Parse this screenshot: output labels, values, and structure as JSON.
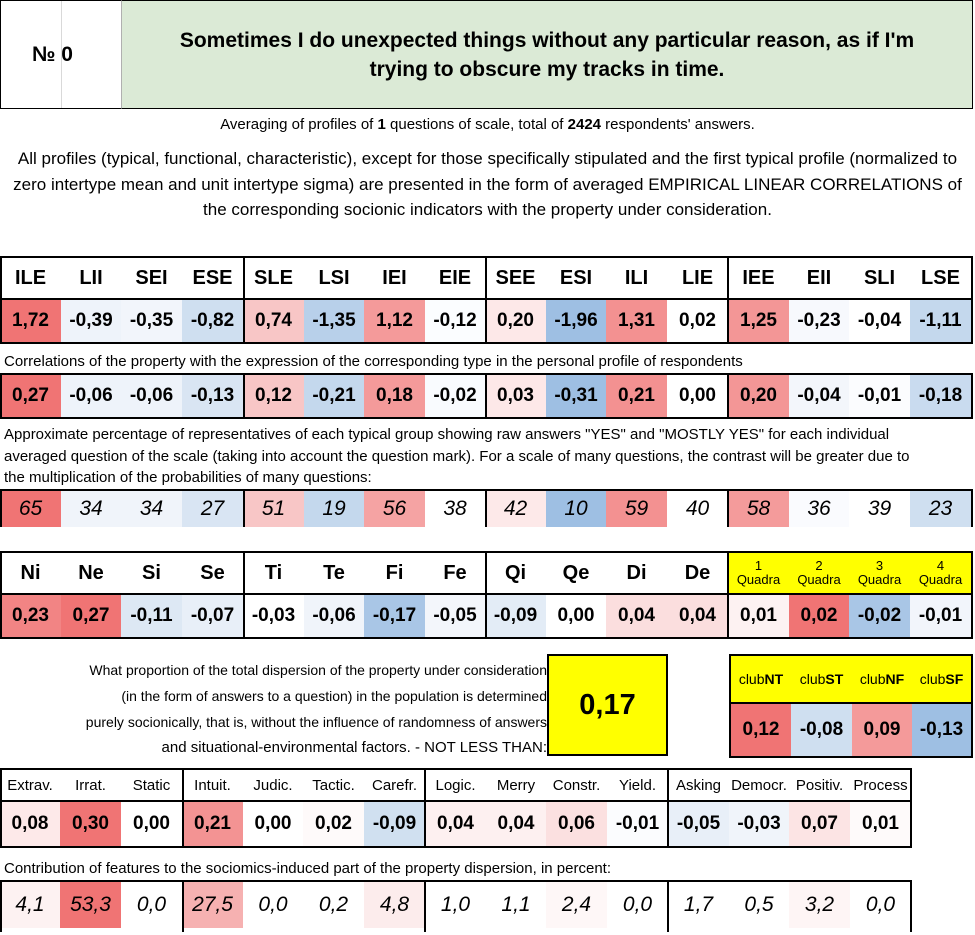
{
  "header": {
    "number_label": "№ 0",
    "question": "Sometimes I do unexpected things without any particular reason, as if I'm trying to obscure my tracks in time."
  },
  "averaging": {
    "prefix": "Averaging of profiles of ",
    "questions": "1",
    "middle": " questions of scale, total of ",
    "respondents": "2424",
    "suffix": " respondents' answers."
  },
  "description": "All profiles (typical, functional, characteristic), except for those specifically stipulated and the first typical profile (normalized to zero intertype mean and unit intertype sigma) are presented in the form of averaged EMPIRICAL LINEAR CORRELATIONS of the corresponding socionic indicators with the property under consideration.",
  "types": {
    "headers": [
      "ILE",
      "LII",
      "SEI",
      "ESE",
      "SLE",
      "LSI",
      "IEI",
      "EIE",
      "SEE",
      "ESI",
      "ILI",
      "LIE",
      "IEE",
      "EII",
      "SLI",
      "LSE"
    ],
    "normalized": [
      "1,72",
      "-0,39",
      "-0,35",
      "-0,82",
      "0,74",
      "-1,35",
      "1,12",
      "-0,12",
      "0,20",
      "-1,96",
      "1,31",
      "0,02",
      "1,25",
      "-0,23",
      "-0,04",
      "-1,11"
    ],
    "normalized_colors": [
      "#f07474",
      "#eef3fa",
      "#f2f5fb",
      "#cfdff0",
      "#f8c6c6",
      "#b8d0ea",
      "#f49a9a",
      "#fbfdff",
      "#fde8e8",
      "#9ebfe3",
      "#f39191",
      "#ffffff",
      "#f39696",
      "#f7f9fd",
      "#ffffff",
      "#c4d8ed"
    ],
    "correlation_note": "Correlations of the property with the expression of the corresponding type in the personal profile of respondents",
    "correlations": [
      "0,27",
      "-0,06",
      "-0,06",
      "-0,13",
      "0,12",
      "-0,21",
      "0,18",
      "-0,02",
      "0,03",
      "-0,31",
      "0,21",
      "0,00",
      "0,20",
      "-0,04",
      "-0,01",
      "-0,18"
    ],
    "correlation_colors": [
      "#f07474",
      "#eef3fa",
      "#eef3fa",
      "#d9e5f3",
      "#f8c6c6",
      "#c4d8ed",
      "#f49a9a",
      "#f9fbfe",
      "#fde8e8",
      "#9ebfe3",
      "#f39191",
      "#ffffff",
      "#f39696",
      "#f3f6fb",
      "#fbfcfe",
      "#c9dbef"
    ],
    "percentage_note": "Approximate percentage of representatives of each typical group showing raw answers \"YES\" and \"MOSTLY YES\" for each individual averaged question of the scale (taking into account the question mark). For a scale of many questions, the contrast will be greater due to the multiplication of the probabilities of many questions:",
    "percentages": [
      "65",
      "34",
      "34",
      "27",
      "51",
      "19",
      "56",
      "38",
      "42",
      "10",
      "59",
      "40",
      "58",
      "36",
      "39",
      "23"
    ],
    "percentage_colors": [
      "#f07474",
      "#f0f4fa",
      "#f0f4fa",
      "#d9e5f3",
      "#f8c6c6",
      "#c4d8ed",
      "#f5a3a3",
      "#ffffff",
      "#fde9e9",
      "#9ebfe3",
      "#f39191",
      "#ffffff",
      "#f49b9b",
      "#fafbfe",
      "#ffffff",
      "#cfdff0"
    ]
  },
  "functions": {
    "headers": [
      "Ni",
      "Ne",
      "Si",
      "Se",
      "Ti",
      "Te",
      "Fi",
      "Fe",
      "Qi",
      "Qe",
      "Di",
      "De"
    ],
    "values": [
      "0,23",
      "0,27",
      "-0,11",
      "-0,07",
      "-0,03",
      "-0,06",
      "-0,17",
      "-0,05",
      "-0,09",
      "0,00",
      "0,04",
      "0,04"
    ],
    "colors": [
      "#f28484",
      "#f07474",
      "#dde8f4",
      "#e8eff8",
      "#ffffff",
      "#f0f4fa",
      "#a9c6e6",
      "#f3f6fb",
      "#e3ecf6",
      "#ffffff",
      "#fbdede",
      "#fbdede"
    ],
    "quadra_headers": [
      {
        "num": "1",
        "label": "Quadra"
      },
      {
        "num": "2",
        "label": "Quadra"
      },
      {
        "num": "3",
        "label": "Quadra"
      },
      {
        "num": "4",
        "label": "Quadra"
      }
    ],
    "quadra_values": [
      "0,01",
      "0,02",
      "-0,02",
      "-0,01"
    ],
    "quadra_colors": [
      "#fdf2f2",
      "#f07474",
      "#a9c6e6",
      "#f2f5fb"
    ]
  },
  "proportion": {
    "text_line1": "What proportion of the total dispersion of the property under consideration",
    "text_line2": "(in the form of answers to a question) in the population is determined",
    "text_line3": "purely socionically, that is, without the influence of randomness of answers",
    "text_line4": "and situational-environmental factors. - NOT LESS THAN:",
    "value": "0,17"
  },
  "clubs": {
    "headers": [
      {
        "prefix": "club",
        "bold": "NT"
      },
      {
        "prefix": "club",
        "bold": "ST"
      },
      {
        "prefix": "club",
        "bold": "NF"
      },
      {
        "prefix": "club",
        "bold": "SF"
      }
    ],
    "values": [
      "0,12",
      "-0,08",
      "0,09",
      "-0,13"
    ],
    "colors": [
      "#f07474",
      "#cfdff0",
      "#f49a9a",
      "#9ebfe3"
    ]
  },
  "traits": {
    "headers": [
      "Extrav.",
      "Irrat.",
      "Static",
      "Intuit.",
      "Judic.",
      "Tactic.",
      "Carefr.",
      "Logic.",
      "Merry",
      "Constr.",
      "Yield.",
      "Asking",
      "Democr.",
      "Positiv.",
      "Process"
    ],
    "values": [
      "0,08",
      "0,30",
      "0,00",
      "0,21",
      "0,00",
      "0,02",
      "-0,09",
      "0,04",
      "0,04",
      "0,06",
      "-0,01",
      "-0,05",
      "-0,03",
      "0,07",
      "0,01"
    ],
    "colors": [
      "#fde9e9",
      "#f07474",
      "#ffffff",
      "#f39393",
      "#ffffff",
      "#fefafa",
      "#d0e0f0",
      "#fdf0f0",
      "#fdf0f0",
      "#fbe0e0",
      "#fbfcfe",
      "#e8eff8",
      "#f0f4fa",
      "#fce4e4",
      "#fefafa"
    ],
    "contribution_note": "Contribution of features to the sociomics-induced part of the property dispersion, in percent:",
    "contributions": [
      "4,1",
      "53,3",
      "0,0",
      "27,5",
      "0,0",
      "0,2",
      "4,8",
      "1,0",
      "1,1",
      "2,4",
      "0,0",
      "1,7",
      "0,5",
      "3,2",
      "0,0"
    ],
    "contribution_colors": [
      "#fdf2f2",
      "#f07474",
      "#ffffff",
      "#f6b1b1",
      "#ffffff",
      "#ffffff",
      "#fcecec",
      "#ffffff",
      "#ffffff",
      "#fef7f7",
      "#ffffff",
      "#ffffff",
      "#ffffff",
      "#fef5f5",
      "#ffffff"
    ]
  }
}
